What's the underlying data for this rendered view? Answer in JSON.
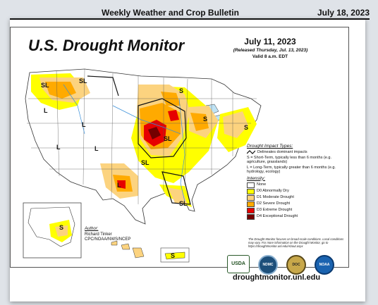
{
  "header": {
    "publication": "Weekly Weather and Crop Bulletin",
    "date": "July 18, 2023"
  },
  "map": {
    "title": "U.S. Drought Monitor",
    "map_date": "July 11, 2023",
    "released": "(Released Thursday, Jul. 13, 2023)",
    "valid": "Valid 8 a.m. EDT",
    "impact_labels": [
      "SL",
      "SL",
      "L",
      "L",
      "S",
      "SL",
      "L",
      "L",
      "S",
      "SL",
      "S",
      "L",
      "SL",
      "S",
      "S"
    ]
  },
  "legend": {
    "impact_heading": "Drought Impact Types:",
    "impact_line": "Delineates dominant impacts",
    "short_term": "S = Short-Term, typically less than 6 months (e.g. agriculture, grasslands)",
    "long_term": "L = Long-Term, typically greater than 6 months (e.g. hydrology, ecology)",
    "intensity_heading": "Intensity:",
    "categories": [
      {
        "label": "None",
        "color": "#ffffff"
      },
      {
        "label": "D0 Abnormally Dry",
        "color": "#ffff00"
      },
      {
        "label": "D1 Moderate Drought",
        "color": "#fcd37f"
      },
      {
        "label": "D2 Severe Drought",
        "color": "#ffaa00"
      },
      {
        "label": "D3 Extreme Drought",
        "color": "#e60000"
      },
      {
        "label": "D4 Exceptional Drought",
        "color": "#730000"
      }
    ]
  },
  "author": {
    "heading": "Author:",
    "name": "Richard Tinker",
    "org": "CPC/NOAA/NWS/NCEP"
  },
  "note": "The Drought Monitor focuses on broad-scale conditions. Local conditions may vary. For more information on the Drought Monitor, go to https://droughtmonitor.unl.edu/About.aspx",
  "logos": [
    "USDA",
    "NDMC",
    "DOC",
    "NOAA"
  ],
  "url": "droughtmonitor.unl.edu"
}
